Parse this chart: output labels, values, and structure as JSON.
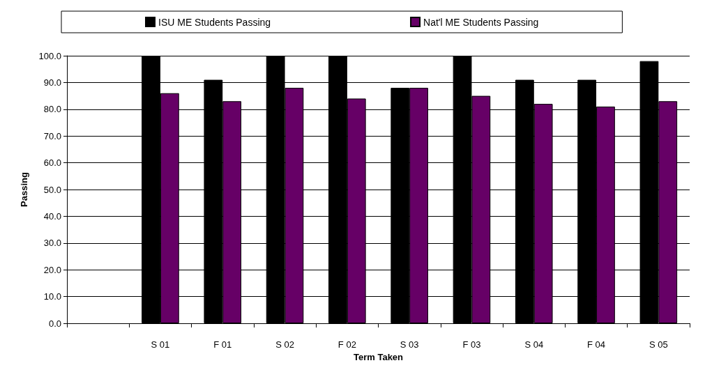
{
  "chart_data": {
    "type": "bar",
    "xlabel": "Term Taken",
    "ylabel": "Passing",
    "categories": [
      null,
      "S 01",
      "F 01",
      "S 02",
      "F 02",
      "S 03",
      "F 03",
      "S 04",
      "F 04",
      "S 05"
    ],
    "series": [
      {
        "name": "ISU ME Students Passing",
        "color": "#000000",
        "values": [
          null,
          100,
          91,
          100,
          100,
          88,
          100,
          91,
          91,
          98
        ]
      },
      {
        "name": "Nat'l ME Students Passing",
        "color": "#660066",
        "values": [
          null,
          86,
          83,
          88,
          84,
          88,
          85,
          82,
          81,
          83
        ]
      }
    ],
    "ylim": [
      0,
      100
    ],
    "yticks": [
      {
        "value": 0,
        "label": "0.0"
      },
      {
        "value": 10,
        "label": "10.0"
      },
      {
        "value": 20,
        "label": "20.0"
      },
      {
        "value": 30,
        "label": "30.0"
      },
      {
        "value": 40,
        "label": "40.0"
      },
      {
        "value": 50,
        "label": "50.0"
      },
      {
        "value": 60,
        "label": "60.0"
      },
      {
        "value": 70,
        "label": "70.0"
      },
      {
        "value": 80,
        "label": "80.0"
      },
      {
        "value": 90,
        "label": "90.0"
      },
      {
        "value": 100,
        "label": "100.0"
      }
    ],
    "grid": "y",
    "legend": "top"
  }
}
